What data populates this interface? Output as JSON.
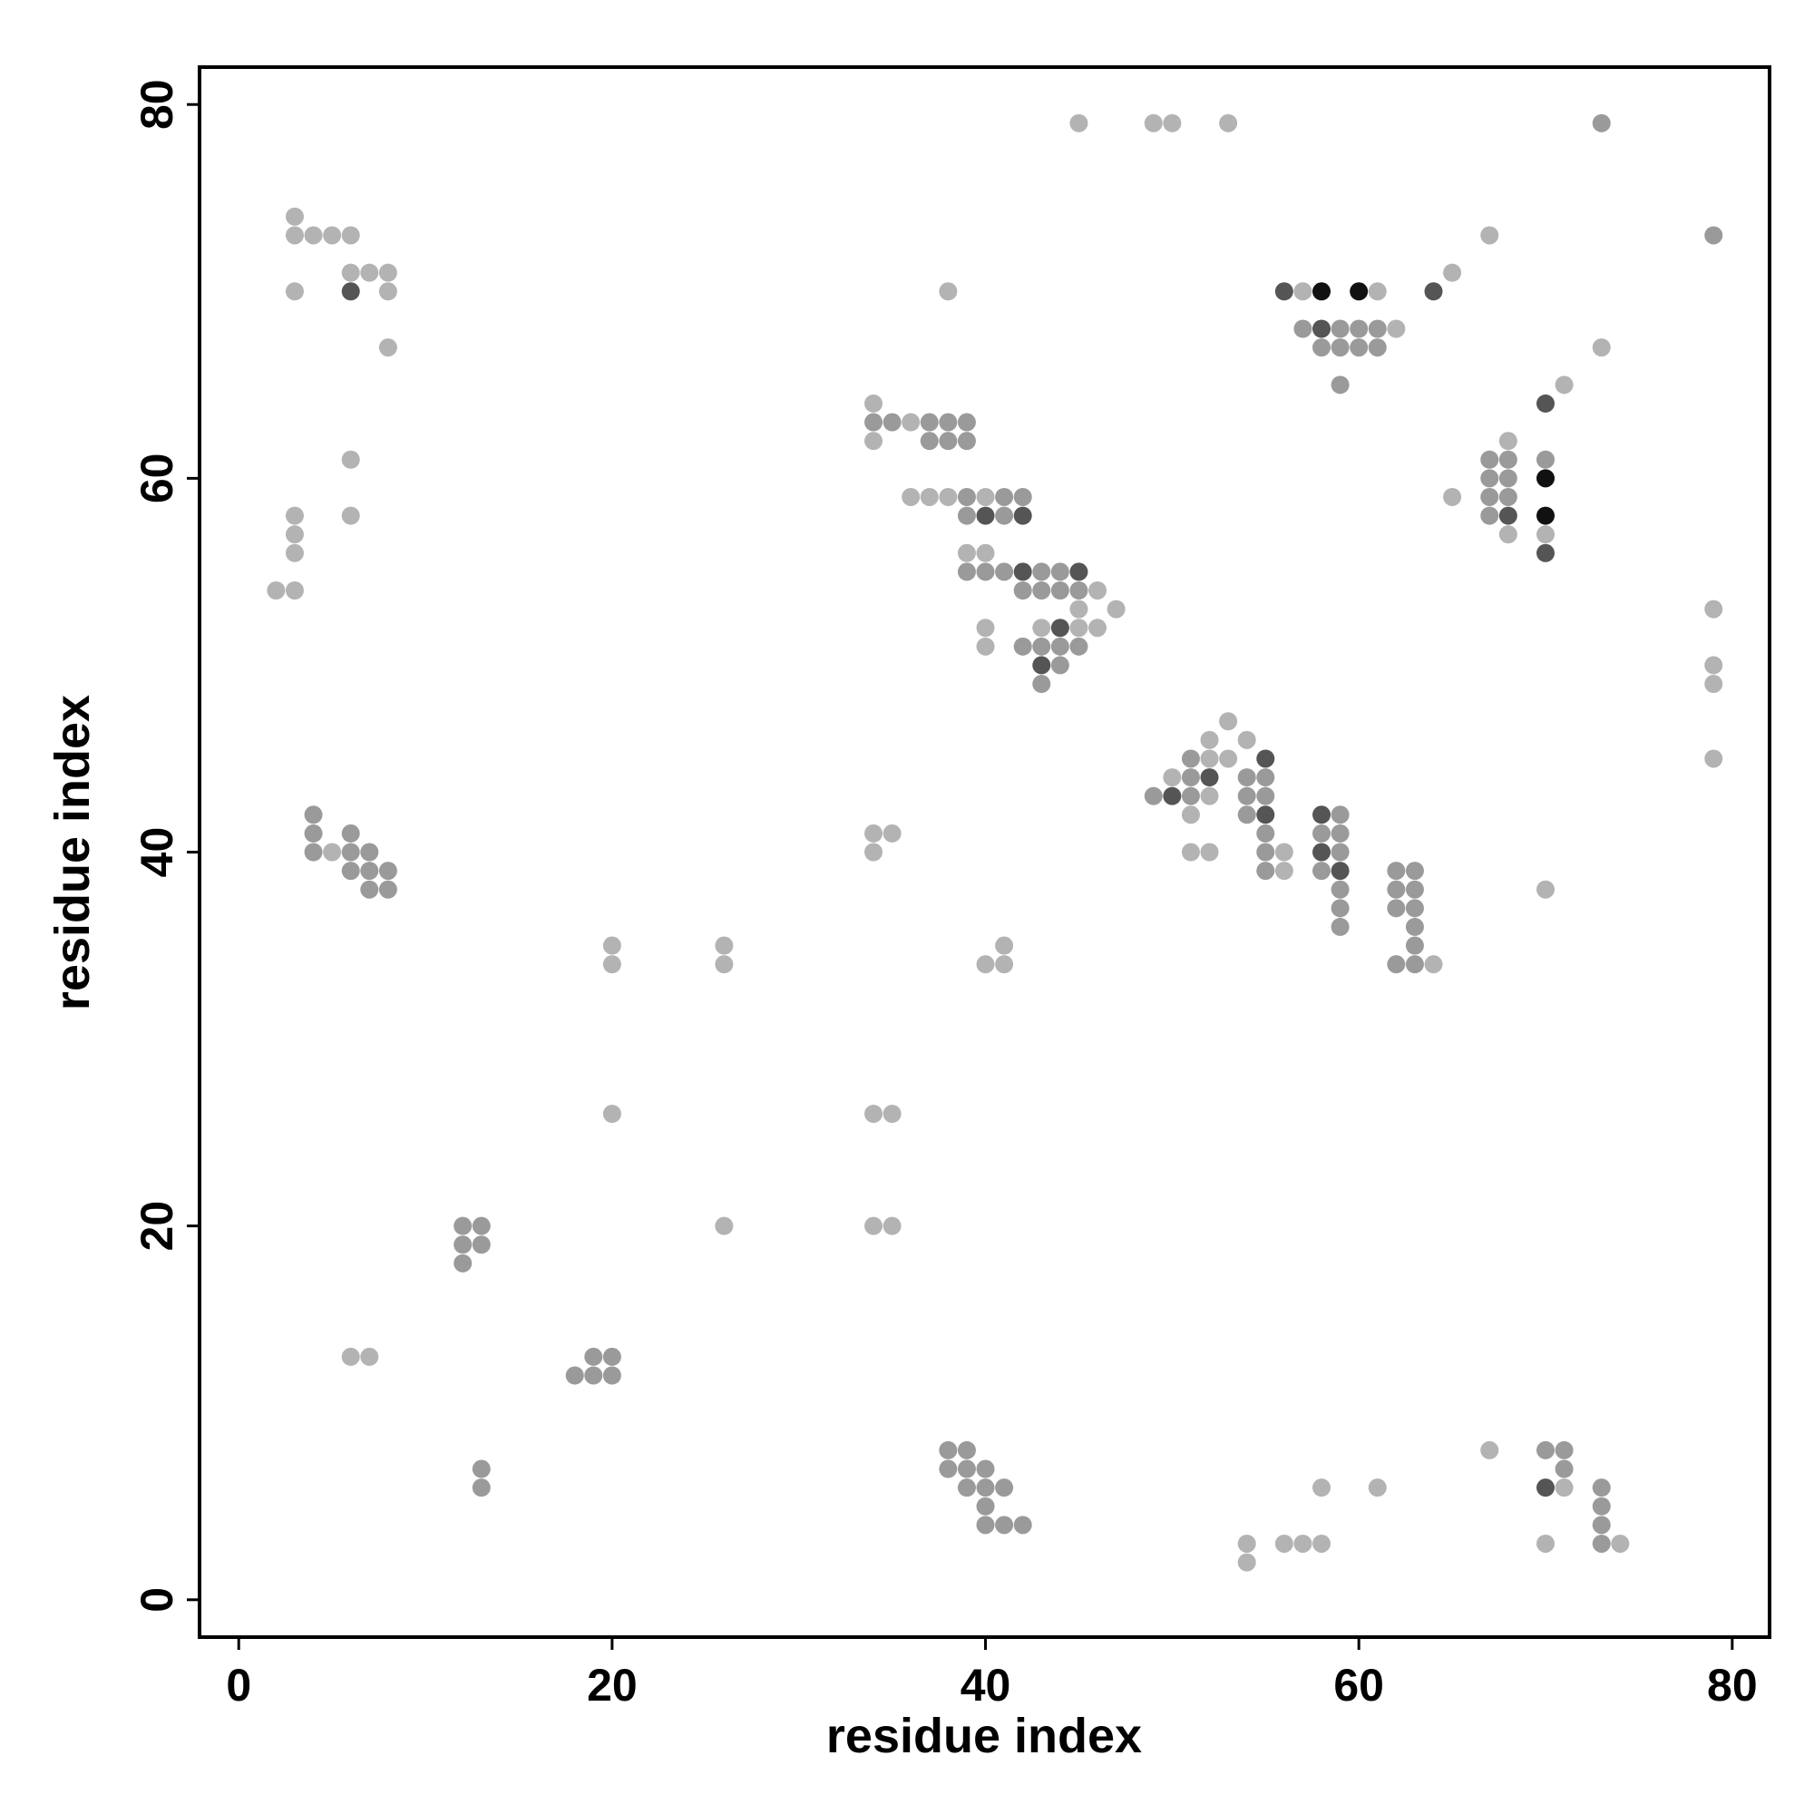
{
  "chart_data": {
    "type": "scatter",
    "xlabel": "residue index",
    "ylabel": "residue index",
    "xlim": [
      -2.1,
      82
    ],
    "ylim": [
      -2,
      82
    ],
    "xticks": [
      0,
      20,
      40,
      60,
      80
    ],
    "yticks": [
      0,
      20,
      40,
      60,
      80
    ],
    "grid": false,
    "series": [
      {
        "color": "#b3b3b3",
        "x": [
          45,
          49,
          50,
          53,
          3,
          3,
          4,
          5,
          6,
          67,
          6,
          7,
          8,
          65,
          3,
          8,
          38,
          57,
          61,
          62,
          8,
          73,
          71,
          34,
          36,
          34,
          68,
          6,
          36,
          37,
          38,
          40,
          65,
          3,
          6,
          3,
          68,
          70,
          3,
          39,
          40,
          2,
          3,
          46,
          45,
          47,
          79,
          40,
          43,
          45,
          46,
          40,
          79,
          79,
          53,
          52,
          54,
          52,
          53,
          79,
          50,
          52,
          51,
          34,
          35,
          5,
          34,
          51,
          52,
          56,
          56,
          70,
          20,
          26,
          41,
          20,
          26,
          40,
          41,
          64,
          20,
          34,
          35,
          26,
          34,
          35,
          6,
          7,
          67,
          58,
          61,
          71,
          54,
          56,
          57,
          58,
          70,
          74,
          54
        ],
        "y": [
          79,
          79,
          79,
          79,
          74,
          73,
          73,
          73,
          73,
          73,
          71,
          71,
          71,
          71,
          70,
          70,
          70,
          70,
          70,
          68,
          67,
          67,
          65,
          64,
          63,
          62,
          62,
          61,
          59,
          59,
          59,
          59,
          59,
          58,
          58,
          57,
          57,
          57,
          56,
          56,
          56,
          54,
          54,
          54,
          53,
          53,
          53,
          52,
          52,
          52,
          52,
          51,
          50,
          49,
          47,
          46,
          46,
          45,
          45,
          45,
          44,
          43,
          42,
          41,
          41,
          40,
          40,
          40,
          40,
          40,
          39,
          38,
          35,
          35,
          35,
          34,
          34,
          34,
          34,
          34,
          26,
          26,
          26,
          20,
          20,
          20,
          13,
          13,
          8,
          6,
          6,
          6,
          3,
          3,
          3,
          3,
          3,
          3,
          2
        ]
      },
      {
        "color": "#9a9a9a",
        "x": [
          73,
          79,
          34,
          35,
          37,
          38,
          39,
          37,
          38,
          39,
          67,
          68,
          67,
          68,
          39,
          41,
          42,
          67,
          68,
          39,
          41,
          67,
          39,
          40,
          41,
          43,
          44,
          42,
          43,
          44,
          45,
          43,
          44,
          45,
          42,
          44,
          43,
          49,
          51,
          54,
          55,
          54,
          55,
          51,
          51,
          54,
          55,
          55,
          55,
          58,
          59,
          59,
          59,
          58,
          62,
          63,
          62,
          63,
          62,
          63,
          63,
          63,
          62,
          63,
          4,
          4,
          4,
          6,
          6,
          7,
          6,
          7,
          8,
          7,
          8,
          12,
          13,
          12,
          13,
          12,
          19,
          20,
          19,
          18,
          20,
          38,
          39,
          38,
          39,
          40,
          39,
          40,
          41,
          40,
          40,
          41,
          42,
          13,
          13,
          57,
          59,
          60,
          61,
          58,
          59,
          60,
          61,
          59,
          70,
          73,
          73,
          73,
          73,
          71,
          70,
          71,
          59,
          59,
          59
        ],
        "y": [
          79,
          73,
          63,
          63,
          63,
          63,
          63,
          62,
          62,
          62,
          61,
          61,
          60,
          60,
          59,
          59,
          59,
          59,
          59,
          58,
          58,
          58,
          55,
          55,
          55,
          55,
          55,
          54,
          54,
          54,
          54,
          51,
          51,
          51,
          51,
          50,
          49,
          43,
          43,
          43,
          43,
          44,
          44,
          44,
          45,
          42,
          41,
          40,
          39,
          39,
          40,
          41,
          42,
          41,
          39,
          39,
          38,
          38,
          37,
          37,
          36,
          35,
          34,
          34,
          42,
          41,
          40,
          41,
          40,
          40,
          39,
          39,
          39,
          38,
          38,
          20,
          20,
          19,
          19,
          18,
          13,
          13,
          12,
          12,
          12,
          8,
          8,
          7,
          7,
          7,
          6,
          6,
          6,
          5,
          4,
          4,
          4,
          7,
          6,
          68,
          68,
          68,
          68,
          67,
          67,
          67,
          67,
          65,
          61,
          6,
          5,
          4,
          3,
          8,
          8,
          7,
          38,
          37,
          36
        ]
      },
      {
        "color": "#555555",
        "x": [
          6,
          56,
          64,
          58,
          70,
          40,
          42,
          68,
          70,
          42,
          45,
          44,
          43,
          55,
          52,
          50,
          55,
          58,
          58,
          59,
          70
        ],
        "y": [
          70,
          70,
          70,
          68,
          64,
          58,
          58,
          58,
          56,
          55,
          55,
          52,
          50,
          45,
          44,
          43,
          42,
          42,
          40,
          39,
          6
        ]
      },
      {
        "color": "#111111",
        "x": [
          58,
          60,
          70,
          70
        ],
        "y": [
          70,
          70,
          60,
          58
        ]
      }
    ]
  }
}
